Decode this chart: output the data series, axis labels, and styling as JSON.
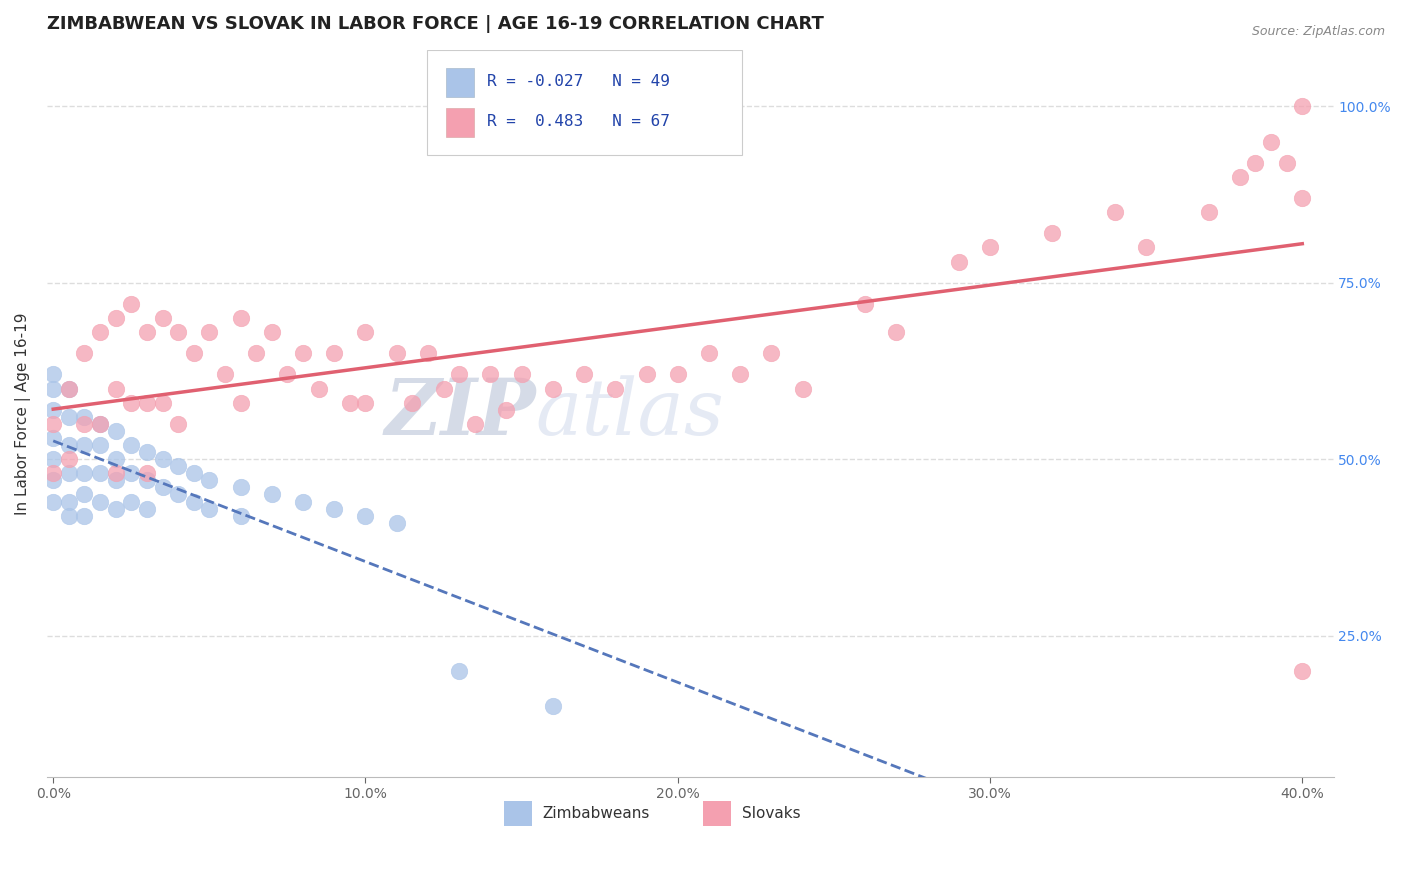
{
  "title": "ZIMBABWEAN VS SLOVAK IN LABOR FORCE | AGE 16-19 CORRELATION CHART",
  "source_text": "Source: ZipAtlas.com",
  "ylabel": "In Labor Force | Age 16-19",
  "xlim": [
    -0.002,
    0.41
  ],
  "ylim": [
    0.05,
    1.08
  ],
  "xticks": [
    0.0,
    0.1,
    0.2,
    0.3,
    0.4
  ],
  "xtick_labels": [
    "0.0%",
    "10.0%",
    "20.0%",
    "30.0%",
    "40.0%"
  ],
  "yticks_right": [
    0.25,
    0.5,
    0.75,
    1.0
  ],
  "ytick_labels_right": [
    "25.0%",
    "50.0%",
    "75.0%",
    "100.0%"
  ],
  "blue_color": "#aac4e8",
  "pink_color": "#f4a0b0",
  "blue_line_color": "#5577bb",
  "pink_line_color": "#e06070",
  "legend_R1": "-0.027",
  "legend_N1": "49",
  "legend_R2": "0.483",
  "legend_N2": "67",
  "background_color": "#ffffff",
  "grid_color": "#dddddd",
  "title_fontsize": 13,
  "axis_label_fontsize": 11,
  "tick_fontsize": 10,
  "blue_x": [
    0.0,
    0.0,
    0.0,
    0.0,
    0.0,
    0.0,
    0.0,
    0.005,
    0.005,
    0.005,
    0.005,
    0.005,
    0.005,
    0.01,
    0.01,
    0.01,
    0.01,
    0.01,
    0.015,
    0.015,
    0.015,
    0.015,
    0.02,
    0.02,
    0.02,
    0.02,
    0.025,
    0.025,
    0.025,
    0.03,
    0.03,
    0.03,
    0.035,
    0.035,
    0.04,
    0.04,
    0.045,
    0.045,
    0.05,
    0.05,
    0.06,
    0.06,
    0.07,
    0.08,
    0.09,
    0.1,
    0.11,
    0.13,
    0.16
  ],
  "blue_y": [
    0.62,
    0.6,
    0.57,
    0.53,
    0.5,
    0.47,
    0.44,
    0.6,
    0.56,
    0.52,
    0.48,
    0.44,
    0.42,
    0.56,
    0.52,
    0.48,
    0.45,
    0.42,
    0.55,
    0.52,
    0.48,
    0.44,
    0.54,
    0.5,
    0.47,
    0.43,
    0.52,
    0.48,
    0.44,
    0.51,
    0.47,
    0.43,
    0.5,
    0.46,
    0.49,
    0.45,
    0.48,
    0.44,
    0.47,
    0.43,
    0.46,
    0.42,
    0.45,
    0.44,
    0.43,
    0.42,
    0.41,
    0.2,
    0.15
  ],
  "pink_x": [
    0.0,
    0.0,
    0.005,
    0.005,
    0.01,
    0.01,
    0.015,
    0.015,
    0.02,
    0.02,
    0.02,
    0.025,
    0.025,
    0.03,
    0.03,
    0.03,
    0.035,
    0.035,
    0.04,
    0.04,
    0.045,
    0.05,
    0.055,
    0.06,
    0.06,
    0.065,
    0.07,
    0.075,
    0.08,
    0.085,
    0.09,
    0.095,
    0.1,
    0.1,
    0.11,
    0.115,
    0.12,
    0.125,
    0.13,
    0.135,
    0.14,
    0.145,
    0.15,
    0.16,
    0.17,
    0.18,
    0.19,
    0.2,
    0.21,
    0.22,
    0.23,
    0.24,
    0.26,
    0.27,
    0.29,
    0.3,
    0.32,
    0.34,
    0.35,
    0.37,
    0.38,
    0.385,
    0.39,
    0.395,
    0.4,
    0.4,
    0.4
  ],
  "pink_y": [
    0.55,
    0.48,
    0.6,
    0.5,
    0.65,
    0.55,
    0.68,
    0.55,
    0.7,
    0.6,
    0.48,
    0.72,
    0.58,
    0.68,
    0.58,
    0.48,
    0.7,
    0.58,
    0.68,
    0.55,
    0.65,
    0.68,
    0.62,
    0.7,
    0.58,
    0.65,
    0.68,
    0.62,
    0.65,
    0.6,
    0.65,
    0.58,
    0.68,
    0.58,
    0.65,
    0.58,
    0.65,
    0.6,
    0.62,
    0.55,
    0.62,
    0.57,
    0.62,
    0.6,
    0.62,
    0.6,
    0.62,
    0.62,
    0.65,
    0.62,
    0.65,
    0.6,
    0.72,
    0.68,
    0.78,
    0.8,
    0.82,
    0.85,
    0.8,
    0.85,
    0.9,
    0.92,
    0.95,
    0.92,
    1.0,
    0.87,
    0.2
  ]
}
